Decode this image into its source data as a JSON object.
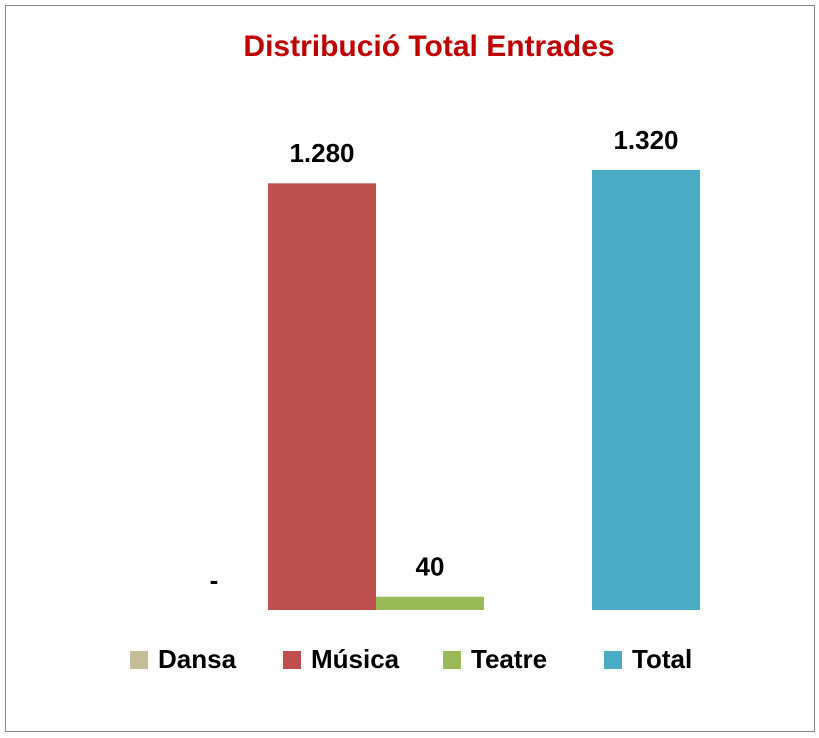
{
  "chart_data": {
    "type": "bar",
    "title": "Distribució Total Entrades",
    "series": [
      {
        "name": "Dansa",
        "color": "#c4bd97",
        "values": [
          0
        ],
        "value_labels": [
          "-"
        ]
      },
      {
        "name": "Música",
        "color": "#c0504d",
        "values": [
          1280
        ],
        "value_labels": [
          "1.280"
        ]
      },
      {
        "name": "Teatre",
        "color": "#9bbb59",
        "values": [
          40
        ]
      },
      {
        "name": "Total",
        "color": "#4bacc6",
        "values": [
          1320
        ],
        "value_labels": [
          "1.320"
        ]
      }
    ],
    "legend": "bottom"
  }
}
